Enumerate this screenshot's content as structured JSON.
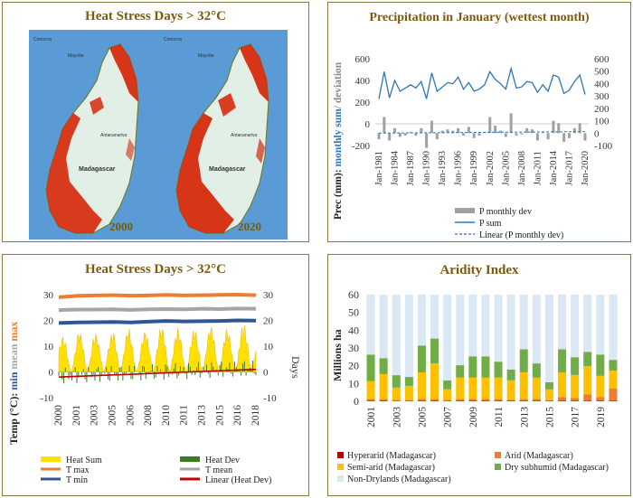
{
  "panels": {
    "map": {
      "title": "Heat Stress Days > 32°C",
      "year_left": "2000",
      "year_right": "2020",
      "labels": {
        "comoros": "Comoros",
        "mayotte": "Mayotte",
        "antananarivo": "Antananarivo",
        "madagascar": "Madagascar"
      }
    },
    "precip": {
      "title": "Precipitation in January (wettest month)",
      "ylabel_part1": "Prec (mm): ",
      "ylabel_part2": "monthly sum",
      "ylabel_part3": "/ deviation",
      "legend": [
        "P monthly dev",
        "P sum",
        "Linear (P monthly dev)"
      ]
    },
    "heat": {
      "title": "Heat Stress Days > 32°C",
      "ylabel_left_a": "Temp (°C): ",
      "ylabel_left_b": "min",
      "ylabel_left_c": "mean",
      "ylabel_left_d": "max",
      "ylabel_right": "Days",
      "legend": [
        "Heat Sum",
        "Heat Dev",
        "T max",
        "T mean",
        "T min",
        "Linear (Heat Dev)"
      ]
    },
    "aridity": {
      "title": "Aridity Index",
      "ylabel": "Millions ha",
      "legend": [
        "Hyperarid (Madagascar)",
        "Arid (Madagascar)",
        "Semi-arid (Madagascar)",
        "Dry subhumid (Madagascar)",
        "Non-Drylands (Madagascar)"
      ]
    }
  },
  "colors": {
    "frame": "#8a7a3c",
    "title": "#7a5a10",
    "psum": "#2e75b6",
    "pdev": "#a0a0a0",
    "tmax": "#ed7d31",
    "tmean": "#a5a5a5",
    "tmin": "#2f5597",
    "heatsum": "#ffe000",
    "heatdev": "#3a7d22",
    "lineartrend": "#c00000",
    "hyperarid": "#c00000",
    "arid": "#ed7d31",
    "semiarid": "#ffc000",
    "drysubhumid": "#70ad47",
    "nondry": "#dae8f5",
    "sea": "#5b9bd5",
    "land": "#e2efe6",
    "hot": "#d62a0c"
  },
  "chart_data": [
    {
      "type": "line",
      "title": "Precipitation in January (wettest month)",
      "ylabel": "Prec (mm): monthly sum/ deviation",
      "x_ticks": [
        "Jan-1981",
        "Jan-1984",
        "Jan-1987",
        "Jan-1990",
        "Jan-1993",
        "Jan-1996",
        "Jan-1999",
        "Jan-2002",
        "Jan-2005",
        "Jan-2008",
        "Jan-2011",
        "Jan-2014",
        "Jan-2017",
        "Jan-2020"
      ],
      "ylim_left": [
        -200,
        600
      ],
      "ylim_right": [
        -100,
        600
      ],
      "y_ticks_left": [
        -200,
        0,
        200,
        400,
        600
      ],
      "y_ticks_right": [
        -100,
        0,
        100,
        200,
        300,
        400,
        500,
        600
      ],
      "x": [
        1981,
        1982,
        1983,
        1984,
        1985,
        1986,
        1987,
        1988,
        1989,
        1990,
        1991,
        1992,
        1993,
        1994,
        1995,
        1996,
        1997,
        1998,
        1999,
        2000,
        2001,
        2002,
        2003,
        2004,
        2005,
        2006,
        2007,
        2008,
        2009,
        2010,
        2011,
        2012,
        2013,
        2014,
        2015,
        2016,
        2017,
        2018,
        2019,
        2020
      ],
      "series": [
        {
          "name": "P sum",
          "axis": "left",
          "values": [
            230,
            480,
            240,
            400,
            300,
            330,
            360,
            330,
            390,
            230,
            470,
            300,
            340,
            380,
            370,
            430,
            320,
            380,
            300,
            320,
            360,
            480,
            410,
            370,
            320,
            510,
            330,
            340,
            390,
            380,
            290,
            360,
            300,
            450,
            430,
            280,
            310,
            390,
            450,
            270
          ]
        },
        {
          "name": "P monthly dev",
          "axis": "right",
          "values": [
            -50,
            130,
            -60,
            40,
            -30,
            -20,
            10,
            -20,
            40,
            -120,
            100,
            -50,
            20,
            30,
            20,
            40,
            -20,
            50,
            -40,
            -20,
            10,
            130,
            60,
            20,
            -30,
            160,
            -20,
            -10,
            40,
            30,
            -60,
            10,
            -50,
            100,
            80,
            -70,
            -40,
            40,
            80,
            -60
          ]
        },
        {
          "name": "Linear (P monthly dev)",
          "axis": "right",
          "values_endpoints": [
            0,
            12
          ]
        }
      ]
    },
    {
      "type": "area",
      "title": "Heat Stress Days > 32°C",
      "ylabel_left": "Temp (°C): min mean max",
      "ylabel_right": "Days",
      "x_ticks": [
        "2000",
        "2001",
        "2003",
        "2005",
        "2006",
        "2008",
        "2010",
        "2011",
        "2013",
        "2015",
        "2016",
        "2018"
      ],
      "ylim_left": [
        -10,
        30
      ],
      "ylim_right": [
        -10,
        30
      ],
      "y_ticks": [
        -10,
        0,
        10,
        20,
        30
      ],
      "series": [
        {
          "name": "T max",
          "values": [
            29.0,
            29.5,
            29.7,
            29.8,
            29.6,
            29.7,
            29.9,
            29.7,
            29.8,
            29.9,
            30.0,
            29.8
          ]
        },
        {
          "name": "T mean",
          "values": [
            24.0,
            24.2,
            24.2,
            24.3,
            24.1,
            24.3,
            24.4,
            24.3,
            24.5,
            24.4,
            24.6,
            24.5
          ]
        },
        {
          "name": "T min",
          "values": [
            19.0,
            19.2,
            19.3,
            19.4,
            19.2,
            19.5,
            19.8,
            19.6,
            19.7,
            19.8,
            20.0,
            19.9
          ]
        },
        {
          "name": "Heat Sum",
          "values": [
            14,
            16,
            15,
            17,
            16,
            18,
            17,
            17,
            18,
            17,
            19,
            18
          ]
        },
        {
          "name": "Linear (Heat Dev)",
          "values_endpoints": [
            -2,
            1
          ]
        }
      ]
    },
    {
      "type": "bar",
      "stacked": true,
      "title": "Aridity Index",
      "ylabel": "Millions ha",
      "ylim": [
        0,
        60
      ],
      "y_ticks": [
        0,
        10,
        20,
        30,
        40,
        50,
        60
      ],
      "categories": [
        "2001",
        "2002",
        "2003",
        "2004",
        "2005",
        "2006",
        "2007",
        "2008",
        "2009",
        "2010",
        "2011",
        "2012",
        "2013",
        "2014",
        "2015",
        "2016",
        "2017",
        "2018",
        "2019",
        "2020"
      ],
      "category_ticks": [
        "2001",
        "2003",
        "2005",
        "2007",
        "2009",
        "2011",
        "2013",
        "2015",
        "2017",
        "2019"
      ],
      "series": [
        {
          "name": "Hyperarid (Madagascar)",
          "values": [
            0.3,
            0.3,
            0.2,
            0.2,
            0.3,
            0.3,
            0.2,
            0.3,
            0.3,
            0.3,
            0.3,
            0.3,
            0.3,
            0.3,
            0.2,
            0.3,
            0.3,
            0.3,
            0.3,
            0.3
          ]
        },
        {
          "name": "Arid (Madagascar)",
          "values": [
            1,
            1,
            0.5,
            0.5,
            1,
            1,
            0.5,
            1,
            1,
            1,
            1,
            0.5,
            1,
            1,
            0.5,
            2,
            1.5,
            3.5,
            2,
            7
          ]
        },
        {
          "name": "Semi-arid (Madagascar)",
          "values": [
            10,
            14,
            7,
            8,
            15,
            20,
            6,
            12,
            12,
            12,
            12,
            11,
            15,
            12,
            6,
            14,
            13,
            16,
            12,
            10
          ]
        },
        {
          "name": "Dry subhumid (Madagascar)",
          "values": [
            15,
            9,
            7,
            5,
            15,
            14,
            5,
            7,
            12,
            12,
            9,
            6,
            13,
            8,
            4,
            13,
            10,
            8,
            12,
            6
          ]
        },
        {
          "name": "Non-Drylands (Madagascar)",
          "values": [
            33.7,
            35.7,
            45.3,
            46.3,
            28.7,
            24.7,
            48.3,
            39.7,
            34.7,
            34.7,
            37.7,
            42.2,
            30.7,
            38.7,
            49.3,
            30.7,
            35.2,
            32.2,
            33.7,
            36.7
          ]
        }
      ]
    }
  ]
}
